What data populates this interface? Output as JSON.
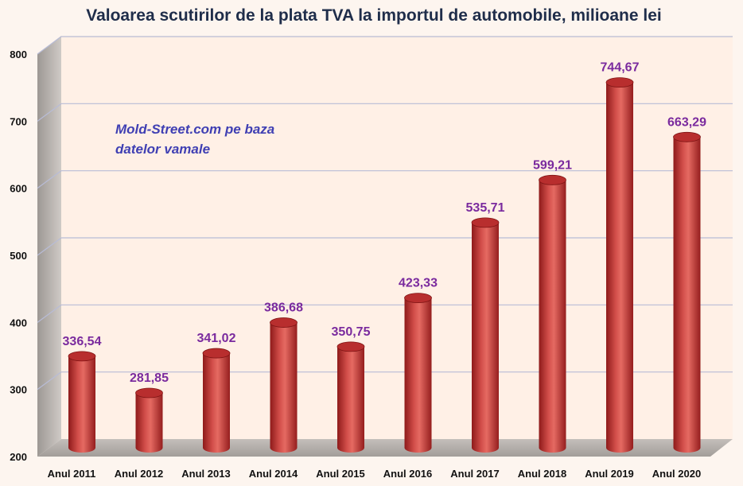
{
  "chart_data": {
    "type": "bar",
    "title": "Valoarea scutirilor de la plata TVA la importul de automobile, milioane lei",
    "annotation_lines": [
      "Mold-Street.com pe baza",
      "datelor vamale"
    ],
    "categories": [
      "Anul 2011",
      "Anul 2012",
      "Anul 2013",
      "Anul 2014",
      "Anul 2015",
      "Anul 2016",
      "Anul 2017",
      "Anul 2018",
      "Anul 2019",
      "Anul 2020"
    ],
    "values": [
      336.54,
      281.85,
      341.02,
      386.68,
      350.75,
      423.33,
      535.71,
      599.21,
      744.67,
      663.29
    ],
    "value_labels": [
      "336,54",
      "281,85",
      "341,02",
      "386,68",
      "350,75",
      "423,33",
      "535,71",
      "599,21",
      "744,67",
      "663,29"
    ],
    "yticks": [
      "200",
      "300",
      "400",
      "500",
      "600",
      "700",
      "800"
    ],
    "ylim": [
      200,
      800
    ],
    "xlabel": "",
    "ylabel": "",
    "grid": true,
    "colors": {
      "bar": "#c43a3a",
      "bar_dark": "#8e1a1a",
      "bar_light": "#e56a62",
      "value_label": "#7a2a9e",
      "annotation": "#3f3fb3",
      "plot_bg": "#fff0e6",
      "wall": "#b9b4b0",
      "floor": "#b3aeaa",
      "grid": "#b8bcd6"
    }
  }
}
